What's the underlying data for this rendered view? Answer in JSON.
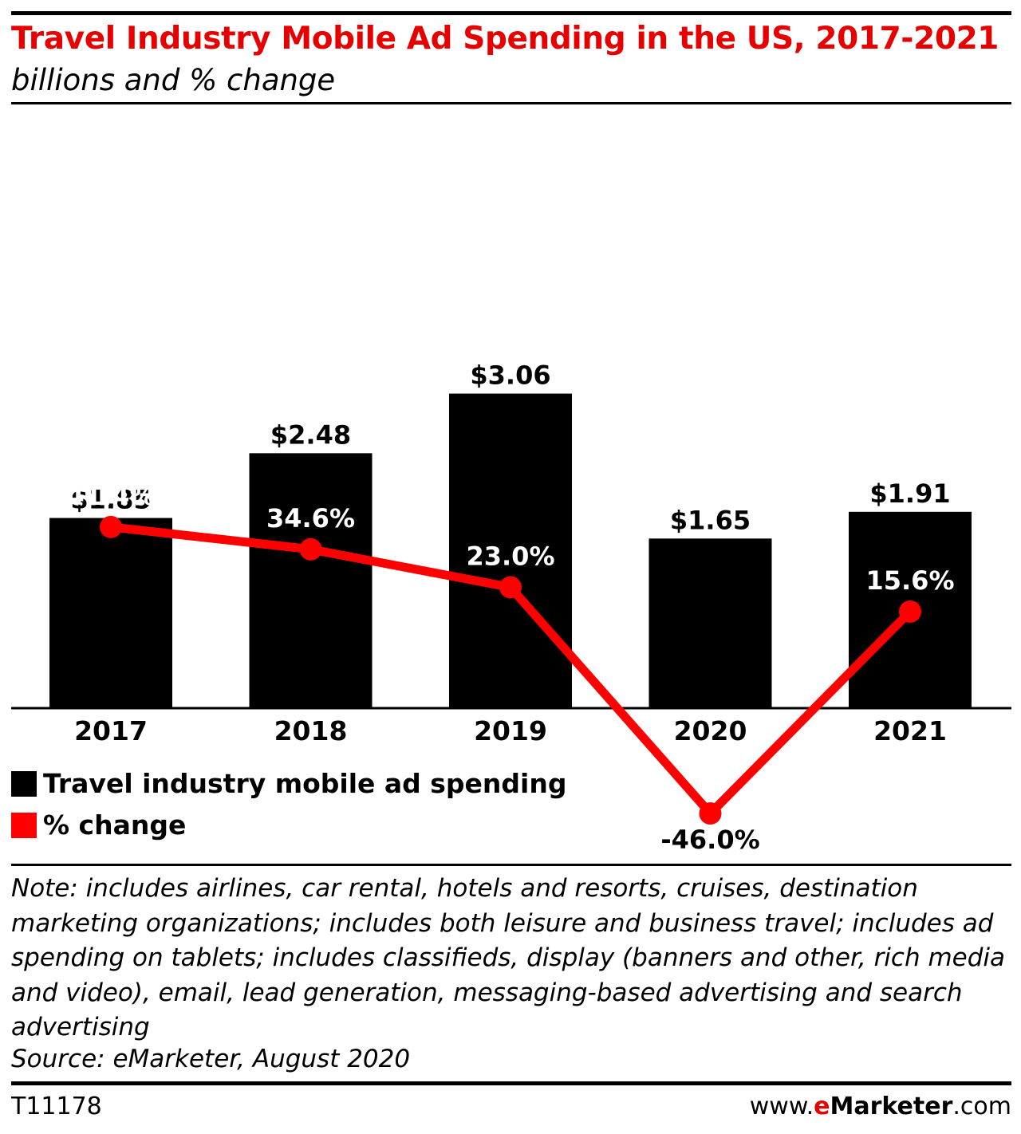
{
  "header": {
    "title": "Travel Industry Mobile Ad Spending in the US, 2017-2021",
    "subtitle": "billions and % change"
  },
  "chart_data": {
    "type": "bar",
    "categories": [
      "2017",
      "2018",
      "2019",
      "2020",
      "2021"
    ],
    "series": [
      {
        "name": "Travel industry mobile ad spending",
        "type": "bar",
        "values": [
          1.85,
          2.48,
          3.06,
          1.65,
          1.91
        ],
        "labels": [
          "$1.85",
          "$2.48",
          "$3.06",
          "$1.65",
          "$1.91"
        ],
        "color": "#000000"
      },
      {
        "name": "% change",
        "type": "line",
        "values": [
          41.4,
          34.6,
          23.0,
          -46.0,
          15.6
        ],
        "labels": [
          "41.4%",
          "34.6%",
          "23.0%",
          "-46.0%",
          "15.6%"
        ],
        "color": "#ff0000"
      }
    ],
    "title": "Travel Industry Mobile Ad Spending in the US, 2017-2021",
    "subtitle": "billions and % change",
    "legend_position": "bottom-left",
    "grid": false
  },
  "footer": {
    "note": "Note: includes airlines, car rental, hotels and resorts, cruises, destination marketing organizations; includes both leisure and business travel; includes ad spending on tablets; includes classifieds, display (banners and other, rich media and video), email, lead generation, messaging-based advertising and search advertising",
    "source": "Source: eMarketer, August 2020",
    "chart_id": "T11178",
    "brand_prefix": "www.",
    "brand_e": "e",
    "brand_main": "Marketer",
    "brand_suffix": ".com"
  },
  "colors": {
    "title": "#e60000",
    "bar": "#000000",
    "line": "#ff0000"
  }
}
